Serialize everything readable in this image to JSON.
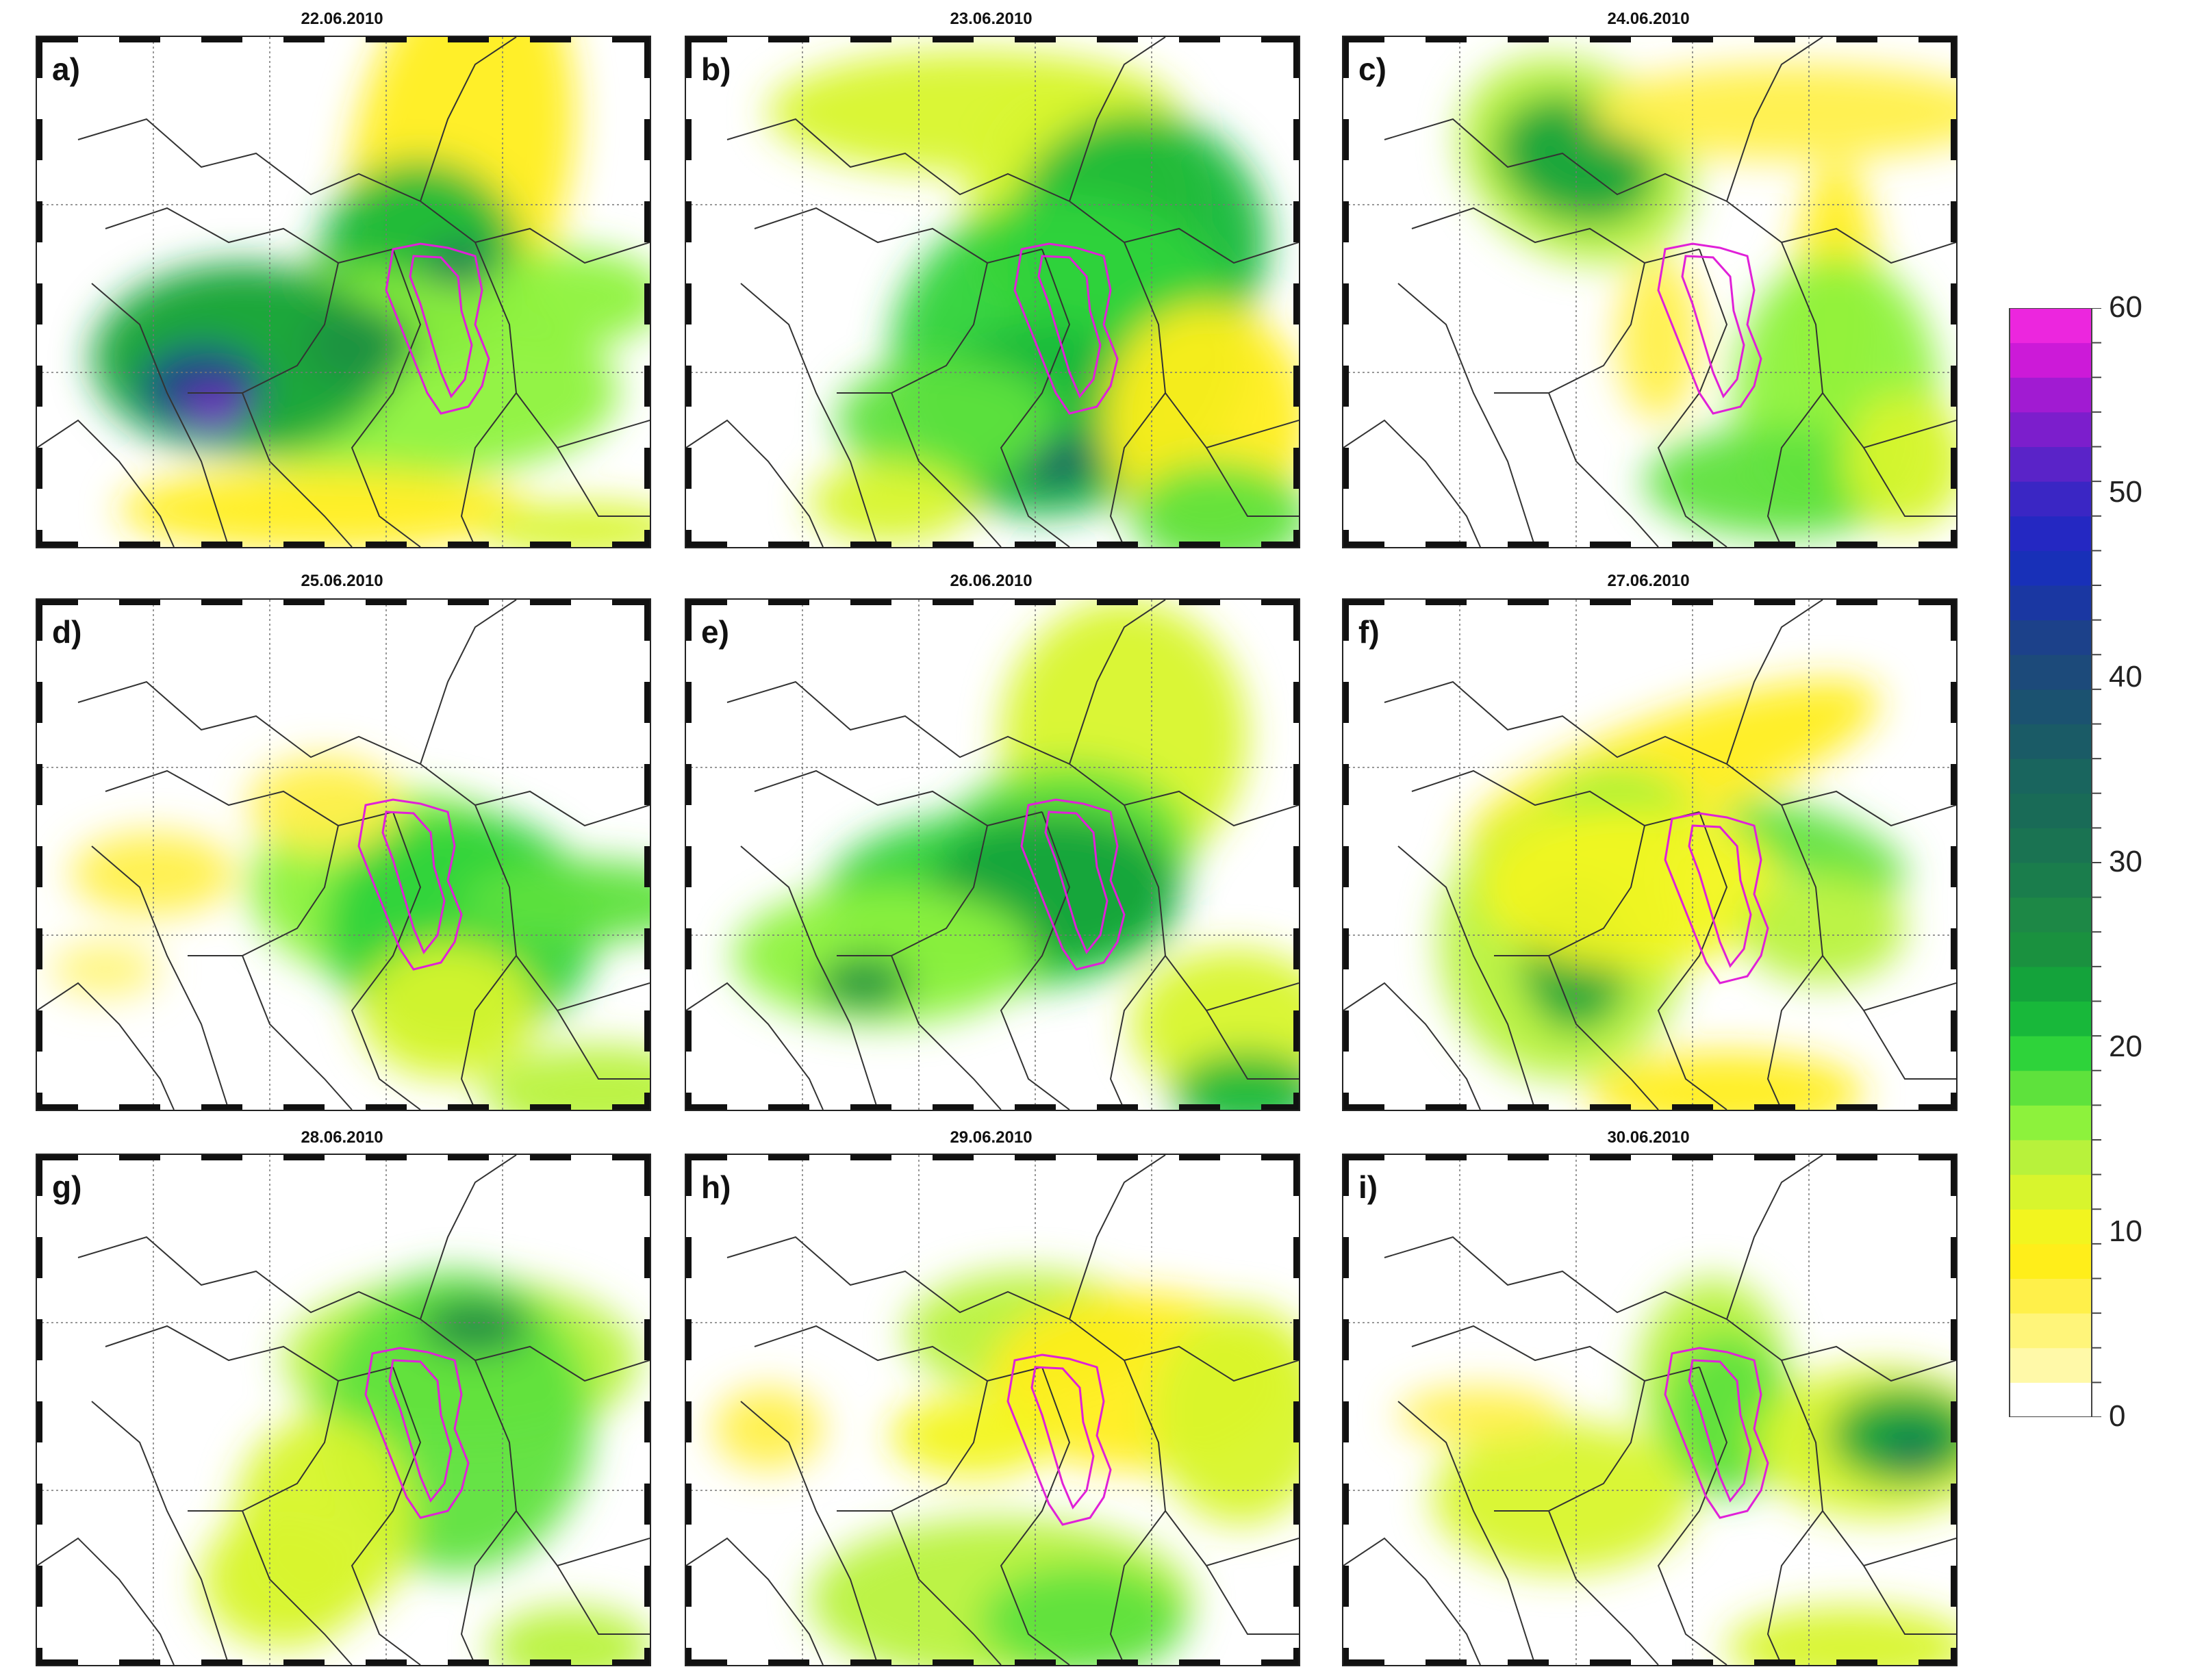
{
  "panels": [
    {
      "letter": "a)",
      "date": "22.06.2010"
    },
    {
      "letter": "b)",
      "date": "23.06.2010"
    },
    {
      "letter": "c)",
      "date": "24.06.2010"
    },
    {
      "letter": "d)",
      "date": "25.06.2010"
    },
    {
      "letter": "e)",
      "date": "26.06.2010"
    },
    {
      "letter": "f)",
      "date": "27.06.2010"
    },
    {
      "letter": "g)",
      "date": "28.06.2010"
    },
    {
      "letter": "h)",
      "date": "29.06.2010"
    },
    {
      "letter": "i)",
      "date": "30.06.2010"
    }
  ],
  "colorbar": {
    "min": 0,
    "max": 60,
    "ticks": [
      "60",
      "50",
      "40",
      "30",
      "20",
      "10",
      "0"
    ],
    "colors": [
      "#ffffff",
      "#fff9a8",
      "#fff57a",
      "#fff04a",
      "#ffee1a",
      "#f2f51f",
      "#d8f52d",
      "#b8f23b",
      "#8df23c",
      "#5ee23c",
      "#2ed33a",
      "#18b83a",
      "#14a33b",
      "#1a913f",
      "#1d8846",
      "#1a7d4c",
      "#1a7352",
      "#196b57",
      "#19655e",
      "#1a5b66",
      "#1b5270",
      "#1c4a7a",
      "#1c418a",
      "#1a37a2",
      "#1830b8",
      "#2428c2",
      "#3a26c4",
      "#5a23c8",
      "#7c1ecc",
      "#a11bd2",
      "#cc1ad8",
      "#ec26de"
    ]
  },
  "map_style": {
    "basin_outline_color": "#e020d8",
    "border_color": "#333333"
  }
}
